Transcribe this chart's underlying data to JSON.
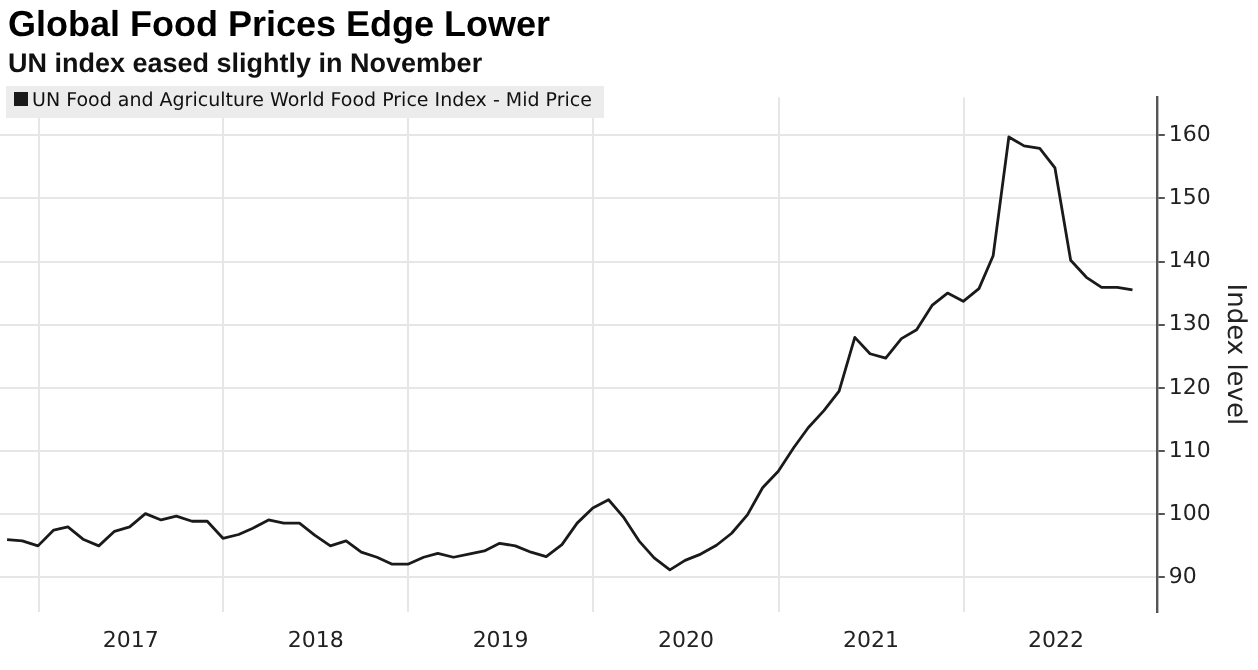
{
  "chart_data": {
    "type": "line",
    "title": "Global Food Prices Edge Lower",
    "subtitle": "UN index eased slightly in November",
    "ylabel": "Index level",
    "x": [
      "2016-10-31",
      "2016-11-30",
      "2016-12-31",
      "2017-01-31",
      "2017-02-28",
      "2017-03-31",
      "2017-04-30",
      "2017-05-31",
      "2017-06-30",
      "2017-07-31",
      "2017-08-31",
      "2017-09-30",
      "2017-10-31",
      "2017-11-30",
      "2017-12-31",
      "2018-01-31",
      "2018-02-28",
      "2018-03-31",
      "2018-04-30",
      "2018-05-31",
      "2018-06-30",
      "2018-07-31",
      "2018-08-31",
      "2018-09-30",
      "2018-10-31",
      "2018-11-30",
      "2018-12-31",
      "2019-01-31",
      "2019-02-28",
      "2019-03-31",
      "2019-04-30",
      "2019-05-31",
      "2019-06-30",
      "2019-07-31",
      "2019-08-31",
      "2019-09-30",
      "2019-10-31",
      "2019-11-30",
      "2019-12-31",
      "2020-01-31",
      "2020-02-29",
      "2020-03-31",
      "2020-04-30",
      "2020-05-31",
      "2020-06-30",
      "2020-07-31",
      "2020-08-31",
      "2020-09-30",
      "2020-10-31",
      "2020-11-30",
      "2020-12-31",
      "2021-01-31",
      "2021-02-28",
      "2021-03-31",
      "2021-04-30",
      "2021-05-31",
      "2021-06-30",
      "2021-07-31",
      "2021-08-31",
      "2021-09-30",
      "2021-10-31",
      "2021-11-30",
      "2021-12-31",
      "2022-01-31",
      "2022-02-28",
      "2022-03-31",
      "2022-04-30",
      "2022-05-31",
      "2022-06-30",
      "2022-07-31",
      "2022-08-31",
      "2022-09-30",
      "2022-10-31",
      "2022-11-30"
    ],
    "series": [
      {
        "name": "UN Food and Agriculture World Food Price Index - Mid Price",
        "color": "#1a1a1a",
        "values": [
          96.0,
          95.8,
          95.0,
          97.5,
          98.0,
          96.0,
          95.0,
          97.3,
          98.0,
          100.1,
          99.1,
          99.7,
          98.9,
          98.9,
          96.2,
          96.8,
          97.8,
          99.1,
          98.6,
          98.6,
          96.7,
          95.0,
          95.8,
          94.0,
          93.2,
          92.1,
          92.1,
          93.2,
          93.8,
          93.2,
          93.7,
          94.2,
          95.4,
          95.0,
          94.0,
          93.3,
          95.2,
          98.6,
          101.0,
          102.3,
          99.6,
          95.8,
          93.1,
          91.2,
          92.7,
          93.7,
          95.1,
          97.0,
          99.9,
          104.2,
          106.8,
          110.6,
          113.7,
          116.4,
          119.5,
          128.0,
          125.4,
          124.7,
          127.8,
          129.2,
          133.1,
          135.0,
          133.7,
          135.7,
          140.9,
          159.7,
          158.3,
          157.9,
          154.8,
          140.2,
          137.5,
          135.9,
          135.9,
          135.5
        ]
      }
    ],
    "xlim": [
      "2016-10-17",
      "2023-01-17"
    ],
    "xticks": [
      {
        "value": "2017-01-01",
        "label": null
      },
      {
        "value": "2017-07-02",
        "label": "2017"
      },
      {
        "value": "2018-01-01",
        "label": null
      },
      {
        "value": "2018-07-02",
        "label": "2018"
      },
      {
        "value": "2019-01-01",
        "label": null
      },
      {
        "value": "2019-07-02",
        "label": "2019"
      },
      {
        "value": "2020-01-01",
        "label": null
      },
      {
        "value": "2020-07-02",
        "label": "2020"
      },
      {
        "value": "2021-01-01",
        "label": null
      },
      {
        "value": "2021-07-02",
        "label": "2021"
      },
      {
        "value": "2022-01-01",
        "label": null
      },
      {
        "value": "2022-07-02",
        "label": "2022"
      }
    ],
    "ylim": [
      84.6,
      166
    ],
    "yticks": [
      90,
      100,
      110,
      120,
      130,
      140,
      150,
      160
    ],
    "grid": true,
    "legend": "top left",
    "marker": "none",
    "line_style": "solid"
  }
}
